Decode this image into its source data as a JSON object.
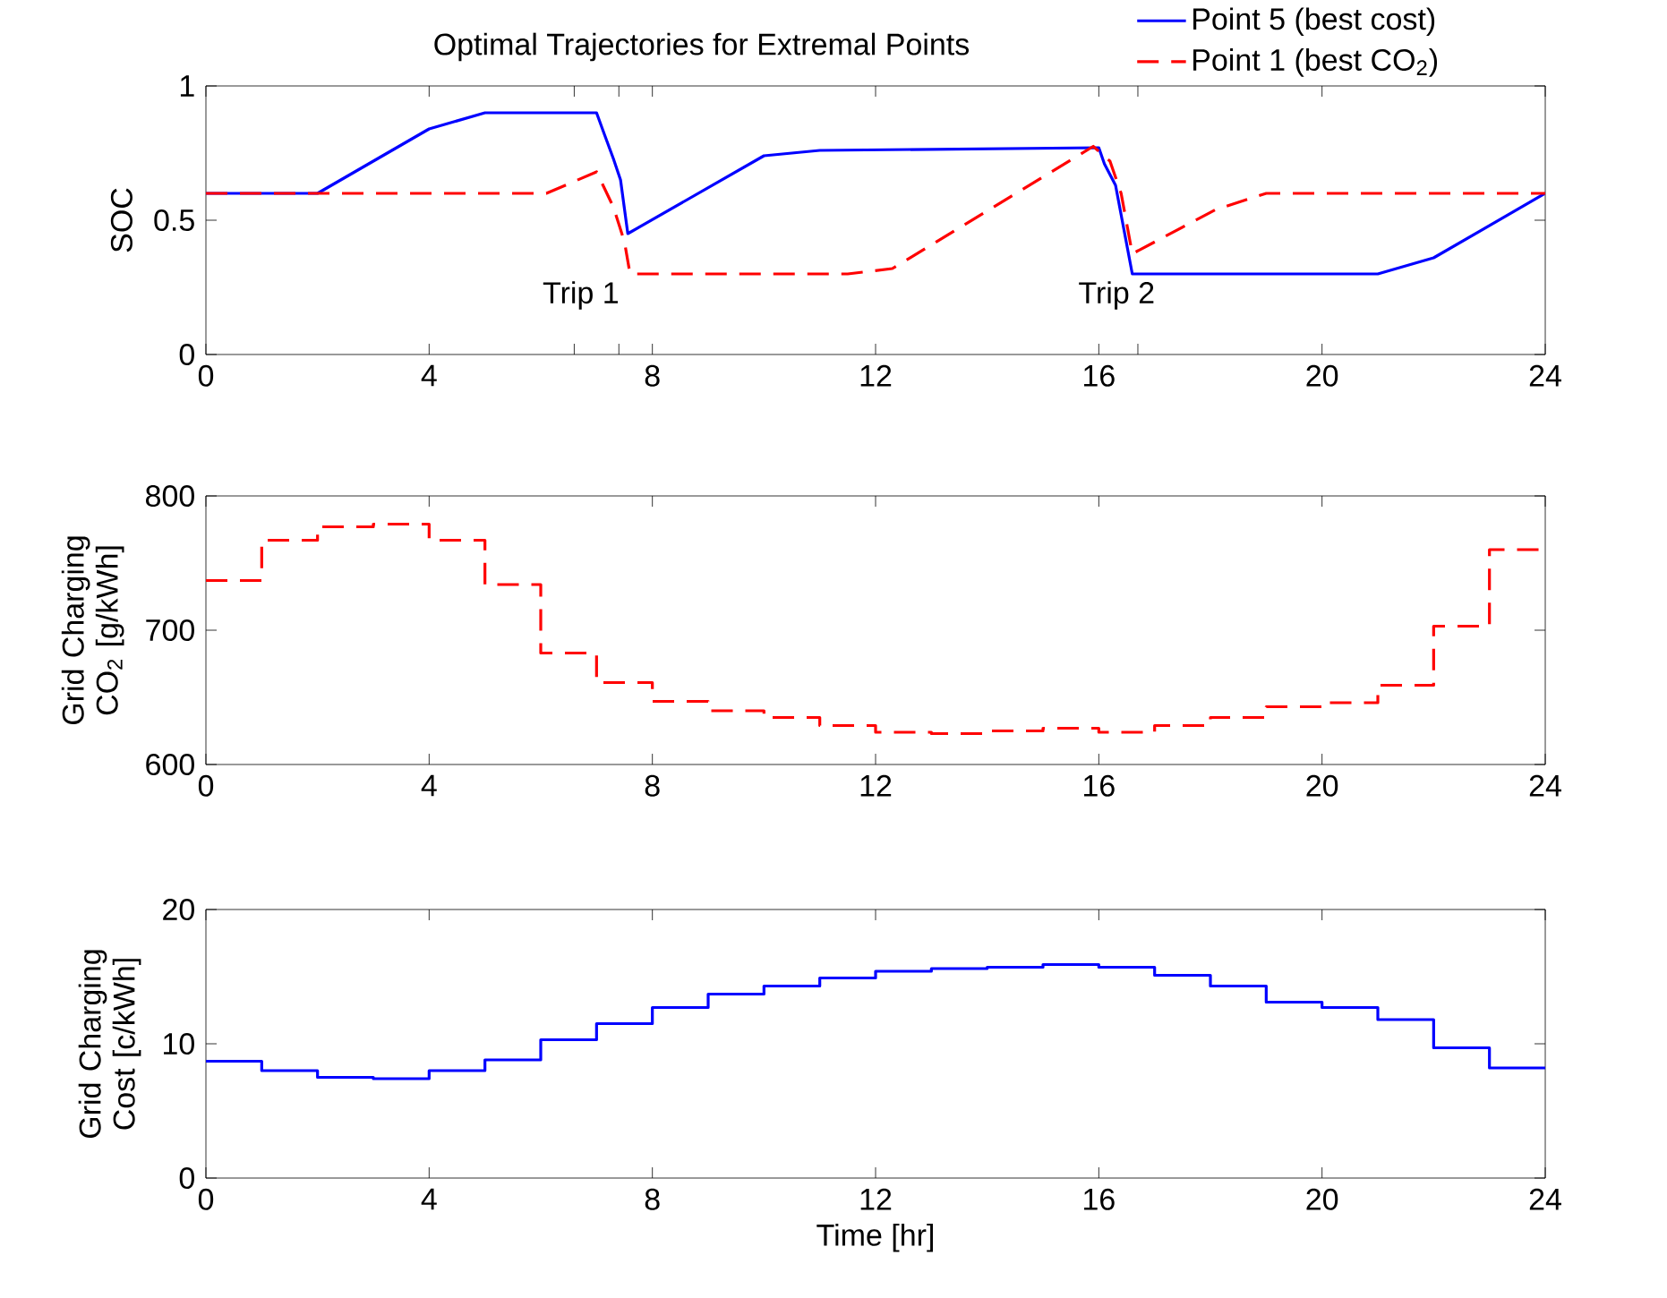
{
  "chart_data": [
    {
      "type": "line",
      "title": "Optimal Trajectories for Extremal Points",
      "ylabel": "SOC",
      "legend": "top right",
      "xlim": [
        0,
        24
      ],
      "ylim": [
        0,
        1
      ],
      "xticks": [
        0,
        4,
        {
          "value": 6.6,
          "label": null
        },
        {
          "value": 7.4,
          "label": null
        },
        8,
        12,
        16,
        {
          "value": 16.7,
          "label": null
        },
        20,
        24
      ],
      "yticks": [
        0,
        0.5,
        1
      ],
      "annotations": [
        "Trip 1",
        "Trip 2"
      ],
      "series": [
        {
          "name": "Point 5 (best cost)",
          "color": "#0000ff",
          "line_style": "solid",
          "x": [
            0,
            2,
            4,
            5,
            7.0,
            7.14,
            7.3,
            7.43,
            7.56,
            10.0,
            11.0,
            16.0,
            16.1,
            16.3,
            16.4,
            16.6,
            21.0,
            22.0,
            24
          ],
          "values": [
            0.6,
            0.6,
            0.84,
            0.9,
            0.9,
            0.82,
            0.73,
            0.65,
            0.45,
            0.74,
            0.76,
            0.77,
            0.71,
            0.63,
            0.52,
            0.3,
            0.3,
            0.36,
            0.6
          ]
        },
        {
          "name": "Point 1 (best CO$_{2}$)",
          "color": "#ff0000",
          "line_style": "dashed",
          "x": [
            0,
            6.1,
            7.0,
            7.3,
            7.5,
            7.6,
            11.5,
            12.3,
            15.9,
            16.2,
            16.4,
            16.6,
            18.1,
            19.0,
            24
          ],
          "values": [
            0.6,
            0.6,
            0.68,
            0.55,
            0.42,
            0.3,
            0.3,
            0.32,
            0.775,
            0.72,
            0.6,
            0.375,
            0.54,
            0.6,
            0.6
          ]
        }
      ]
    },
    {
      "type": "step",
      "ylabel": "Grid Charging CO$_{2}$ [g/kWh]",
      "xlim": [
        0,
        24
      ],
      "ylim": [
        600,
        800
      ],
      "xticks": [
        0,
        4,
        8,
        12,
        16,
        20,
        24
      ],
      "yticks": [
        600,
        700,
        800
      ],
      "x": [
        0,
        1,
        2,
        3,
        4,
        5,
        6,
        7,
        8,
        9,
        10,
        11,
        12,
        13,
        14,
        15,
        16,
        17,
        18,
        19,
        20,
        21,
        22,
        23,
        24
      ],
      "series": [
        {
          "color": "#ff0000",
          "line_style": "dashed",
          "values": [
            737,
            767,
            777,
            779,
            767,
            734,
            683,
            661,
            647,
            640,
            635,
            629,
            624,
            623,
            625,
            627,
            624,
            629,
            635,
            643,
            646,
            659,
            703,
            760,
            760
          ]
        }
      ]
    },
    {
      "type": "step",
      "ylabel": "Grid Charging Cost [c/kWh]",
      "xlabel": "Time [hr]",
      "xlim": [
        0,
        24
      ],
      "ylim": [
        0,
        20
      ],
      "xticks": [
        0,
        4,
        8,
        12,
        16,
        20,
        24
      ],
      "yticks": [
        0,
        10,
        20
      ],
      "x": [
        0,
        1,
        2,
        3,
        4,
        5,
        6,
        7,
        8,
        9,
        10,
        11,
        12,
        13,
        14,
        15,
        16,
        17,
        18,
        19,
        20,
        21,
        22,
        23,
        24
      ],
      "series": [
        {
          "color": "#0000ff",
          "line_style": "solid",
          "values": [
            8.7,
            8.0,
            7.5,
            7.4,
            8.0,
            8.8,
            10.3,
            11.5,
            12.7,
            13.7,
            14.3,
            14.9,
            15.4,
            15.6,
            15.7,
            15.9,
            15.7,
            15.1,
            14.3,
            13.1,
            12.7,
            11.8,
            9.7,
            8.2,
            8.2
          ]
        }
      ]
    }
  ]
}
